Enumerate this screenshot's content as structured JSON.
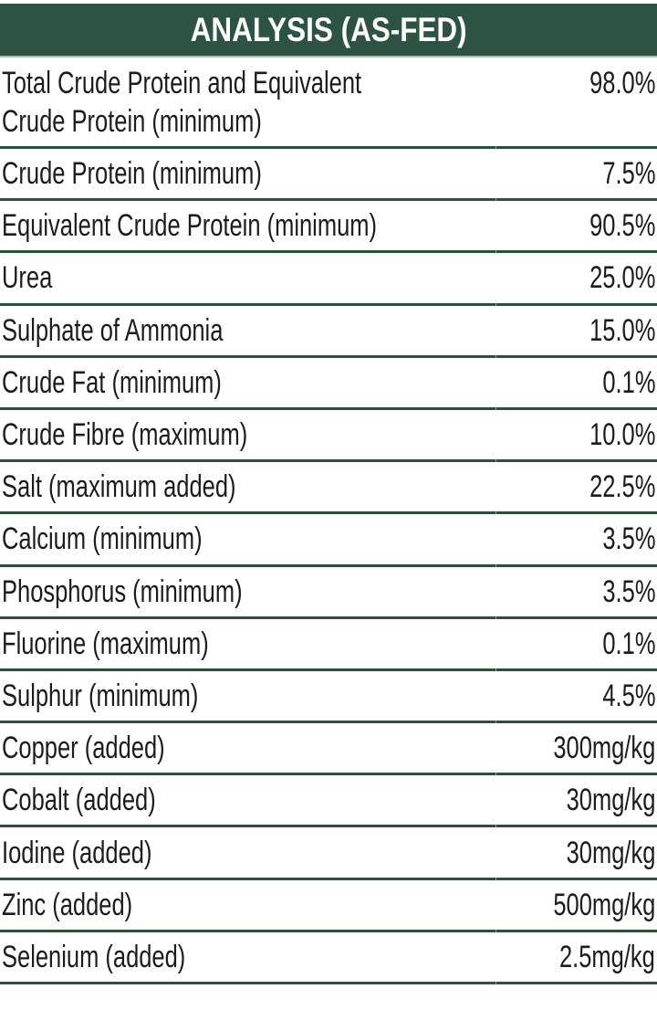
{
  "header": {
    "title": "ANALYSIS (AS-FED)"
  },
  "colors": {
    "header_bg": "#2d5442",
    "header_text": "#ffffff",
    "rule": "#2e4f3c",
    "text": "#1c1c1a",
    "page_bg": "#ffffff"
  },
  "table": {
    "rows": [
      {
        "label": "Total Crude Protein and Equivalent\nCrude Protein (minimum)",
        "value": "98.0%"
      },
      {
        "label": "Crude Protein (minimum)",
        "value": "7.5%"
      },
      {
        "label": "Equivalent Crude Protein (minimum)",
        "value": "90.5%"
      },
      {
        "label": "Urea",
        "value": "25.0%"
      },
      {
        "label": "Sulphate of Ammonia",
        "value": "15.0%"
      },
      {
        "label": "Crude Fat (minimum)",
        "value": "0.1%"
      },
      {
        "label": "Crude Fibre (maximum)",
        "value": "10.0%"
      },
      {
        "label": "Salt (maximum added)",
        "value": "22.5%"
      },
      {
        "label": "Calcium (minimum)",
        "value": "3.5%"
      },
      {
        "label": "Phosphorus (minimum)",
        "value": "3.5%"
      },
      {
        "label": "Fluorine (maximum)",
        "value": "0.1%"
      },
      {
        "label": "Sulphur (minimum)",
        "value": "4.5%"
      },
      {
        "label": "Copper (added)",
        "value": "300mg/kg"
      },
      {
        "label": "Cobalt (added)",
        "value": "30mg/kg"
      },
      {
        "label": "Iodine (added)",
        "value": "30mg/kg"
      },
      {
        "label": "Zinc (added)",
        "value": "500mg/kg"
      },
      {
        "label": "Selenium (added)",
        "value": "2.5mg/kg"
      }
    ]
  }
}
